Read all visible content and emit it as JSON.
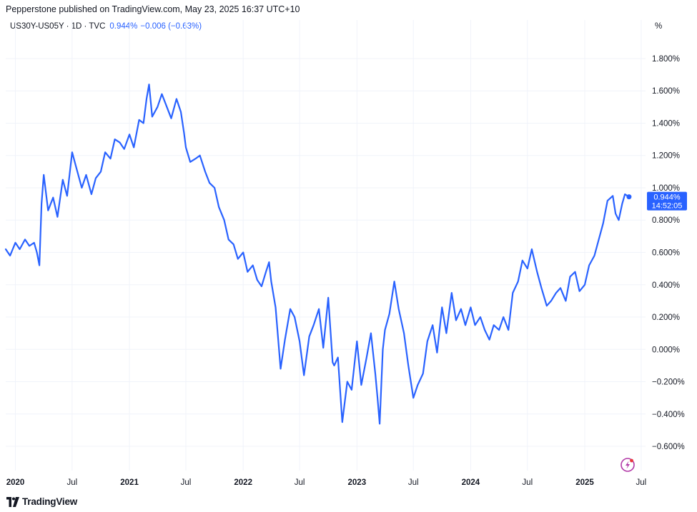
{
  "header": {
    "publisher_line": "Pepperstone published on TradingView.com, May 23, 2025 16:37 UTC+10"
  },
  "legend": {
    "symbol": "US30Y-US05Y · 1D · TVC",
    "last_value": "0.944%",
    "change": "−0.006 (−0.63%)"
  },
  "price_tag": {
    "value": "0.944%",
    "countdown": "14:52:05"
  },
  "brand": {
    "name": "TradingView"
  },
  "colors": {
    "line": "#2962ff",
    "grid": "#f0f3fa",
    "tag_bg": "#2962ff"
  },
  "chart_data": {
    "type": "line",
    "title": "",
    "xlabel": "",
    "ylabel": "%",
    "unit_label": "%",
    "ylim": [
      -0.75,
      1.95
    ],
    "xlim": [
      "2019-12-01",
      "2025-07-15"
    ],
    "grid": true,
    "y_ticks": [
      "1.800%",
      "1.600%",
      "1.400%",
      "1.200%",
      "1.000%",
      "0.800%",
      "0.600%",
      "0.400%",
      "0.200%",
      "0.000%",
      "−0.200%",
      "−0.400%",
      "−0.600%"
    ],
    "x_ticks": [
      {
        "label": "2020",
        "date": "2020-01-01",
        "bold": true
      },
      {
        "label": "Jul",
        "date": "2020-07-01",
        "bold": false
      },
      {
        "label": "2021",
        "date": "2021-01-01",
        "bold": true
      },
      {
        "label": "Jul",
        "date": "2021-07-01",
        "bold": false
      },
      {
        "label": "2022",
        "date": "2022-01-01",
        "bold": true
      },
      {
        "label": "Jul",
        "date": "2022-07-01",
        "bold": false
      },
      {
        "label": "2023",
        "date": "2023-01-01",
        "bold": true
      },
      {
        "label": "Jul",
        "date": "2023-07-01",
        "bold": false
      },
      {
        "label": "2024",
        "date": "2024-01-01",
        "bold": true
      },
      {
        "label": "Jul",
        "date": "2024-07-01",
        "bold": false
      },
      {
        "label": "2025",
        "date": "2025-01-01",
        "bold": true
      },
      {
        "label": "Jul",
        "date": "2025-07-01",
        "bold": false
      }
    ],
    "series": [
      {
        "x": [
          "2019-12-01",
          "2019-12-15",
          "2020-01-01",
          "2020-01-15",
          "2020-02-01",
          "2020-02-15",
          "2020-03-01",
          "2020-03-10",
          "2020-03-18",
          "2020-03-25",
          "2020-04-01",
          "2020-04-15",
          "2020-05-01",
          "2020-05-15",
          "2020-06-01",
          "2020-06-15",
          "2020-07-01",
          "2020-07-15",
          "2020-08-01",
          "2020-08-15",
          "2020-09-01",
          "2020-09-15",
          "2020-10-01",
          "2020-10-15",
          "2020-11-01",
          "2020-11-15",
          "2020-12-01",
          "2020-12-15",
          "2021-01-01",
          "2021-01-15",
          "2021-02-01",
          "2021-02-15",
          "2021-02-25",
          "2021-03-05",
          "2021-03-15",
          "2021-04-01",
          "2021-04-15",
          "2021-05-01",
          "2021-05-15",
          "2021-06-01",
          "2021-06-15",
          "2021-06-25",
          "2021-07-01",
          "2021-07-15",
          "2021-08-01",
          "2021-08-15",
          "2021-09-01",
          "2021-09-15",
          "2021-10-01",
          "2021-10-15",
          "2021-11-01",
          "2021-11-15",
          "2021-12-01",
          "2021-12-15",
          "2022-01-01",
          "2022-01-15",
          "2022-02-01",
          "2022-02-15",
          "2022-03-01",
          "2022-03-15",
          "2022-03-25",
          "2022-04-01",
          "2022-04-15",
          "2022-05-01",
          "2022-05-15",
          "2022-06-01",
          "2022-06-15",
          "2022-07-01",
          "2022-07-15",
          "2022-08-01",
          "2022-08-15",
          "2022-09-01",
          "2022-09-15",
          "2022-10-01",
          "2022-10-15",
          "2022-10-20",
          "2022-11-01",
          "2022-11-15",
          "2022-12-01",
          "2022-12-15",
          "2023-01-01",
          "2023-01-15",
          "2023-02-01",
          "2023-02-15",
          "2023-03-01",
          "2023-03-08",
          "2023-03-15",
          "2023-03-25",
          "2023-04-01",
          "2023-04-15",
          "2023-05-01",
          "2023-05-15",
          "2023-06-01",
          "2023-06-15",
          "2023-07-01",
          "2023-07-15",
          "2023-08-01",
          "2023-08-15",
          "2023-09-01",
          "2023-09-15",
          "2023-10-01",
          "2023-10-15",
          "2023-11-01",
          "2023-11-15",
          "2023-12-01",
          "2023-12-15",
          "2024-01-01",
          "2024-01-15",
          "2024-02-01",
          "2024-02-15",
          "2024-03-01",
          "2024-03-15",
          "2024-04-01",
          "2024-04-15",
          "2024-05-01",
          "2024-05-15",
          "2024-06-01",
          "2024-06-15",
          "2024-07-01",
          "2024-07-15",
          "2024-08-01",
          "2024-08-15",
          "2024-09-01",
          "2024-09-15",
          "2024-10-01",
          "2024-10-15",
          "2024-11-01",
          "2024-11-15",
          "2024-12-01",
          "2024-12-15",
          "2025-01-01",
          "2025-01-15",
          "2025-02-01",
          "2025-02-15",
          "2025-03-01",
          "2025-03-15",
          "2025-04-01",
          "2025-04-10",
          "2025-04-20",
          "2025-05-01",
          "2025-05-10",
          "2025-05-23"
        ],
        "y": [
          0.62,
          0.58,
          0.66,
          0.62,
          0.68,
          0.64,
          0.66,
          0.6,
          0.52,
          0.9,
          1.08,
          0.86,
          0.94,
          0.82,
          1.05,
          0.95,
          1.22,
          1.12,
          1.0,
          1.08,
          0.96,
          1.06,
          1.1,
          1.22,
          1.18,
          1.3,
          1.28,
          1.24,
          1.33,
          1.25,
          1.42,
          1.4,
          1.55,
          1.64,
          1.44,
          1.5,
          1.58,
          1.5,
          1.43,
          1.55,
          1.47,
          1.34,
          1.25,
          1.16,
          1.18,
          1.2,
          1.1,
          1.03,
          1.0,
          0.88,
          0.8,
          0.68,
          0.65,
          0.56,
          0.6,
          0.48,
          0.52,
          0.43,
          0.39,
          0.48,
          0.54,
          0.42,
          0.26,
          -0.12,
          0.06,
          0.25,
          0.2,
          0.05,
          -0.16,
          0.08,
          0.15,
          0.25,
          0.01,
          0.32,
          -0.08,
          -0.1,
          -0.05,
          -0.45,
          -0.2,
          -0.25,
          0.05,
          -0.22,
          -0.05,
          0.1,
          -0.15,
          -0.3,
          -0.46,
          0.0,
          0.12,
          0.22,
          0.42,
          0.25,
          0.1,
          -0.1,
          -0.3,
          -0.22,
          -0.15,
          0.05,
          0.15,
          -0.02,
          0.26,
          0.1,
          0.35,
          0.18,
          0.25,
          0.15,
          0.26,
          0.15,
          0.2,
          0.12,
          0.06,
          0.15,
          0.12,
          0.2,
          0.12,
          0.35,
          0.42,
          0.55,
          0.5,
          0.62,
          0.48,
          0.38,
          0.27,
          0.3,
          0.35,
          0.38,
          0.3,
          0.45,
          0.48,
          0.36,
          0.4,
          0.52,
          0.58,
          0.68,
          0.78,
          0.92,
          0.95,
          0.84,
          0.8,
          0.9,
          0.96,
          0.944
        ]
      }
    ]
  }
}
